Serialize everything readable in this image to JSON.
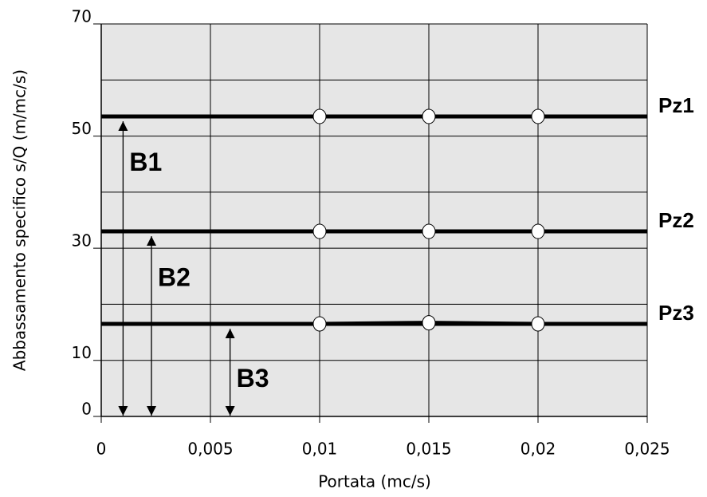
{
  "chart_data": {
    "type": "line",
    "x_label": "Portata (mc/s)",
    "y_label": "Abbassamento specifico s/Q (m/mc/s)",
    "x": [
      0.01,
      0.015,
      0.02
    ],
    "series": [
      {
        "name": "Pz1",
        "color": "#000000",
        "values": [
          53.5,
          53.5,
          53.5
        ]
      },
      {
        "name": "Pz2",
        "color": "#000000",
        "values": [
          33,
          33,
          33
        ]
      },
      {
        "name": "Pz3",
        "color": "#000000",
        "values": [
          16.5,
          16.7,
          16.5
        ]
      }
    ],
    "xlim": [
      0,
      0.025
    ],
    "xticks": [
      0,
      {
        "value": 0.005,
        "label": "0,005"
      },
      {
        "value": 0.01,
        "label": "0,01"
      },
      {
        "value": 0.015,
        "label": "0,015"
      },
      {
        "value": 0.02,
        "label": "0,02"
      },
      {
        "value": 0.025,
        "label": "0,025"
      }
    ],
    "ylim": [
      0,
      70
    ],
    "yticks": [
      0,
      10,
      30,
      50,
      70
    ],
    "ygrid_minor": [
      20,
      40,
      60
    ],
    "grid": true,
    "background": "#e6e6e6",
    "annotations": [
      {
        "text": "B1",
        "x": 0.001,
        "series": 0,
        "label_y": 45
      },
      {
        "text": "B2",
        "x": 0.0023,
        "series": 1,
        "label_y": 24.5
      },
      {
        "text": "B3",
        "x": 0.0059,
        "series": 2,
        "label_y": 6.5
      }
    ]
  }
}
